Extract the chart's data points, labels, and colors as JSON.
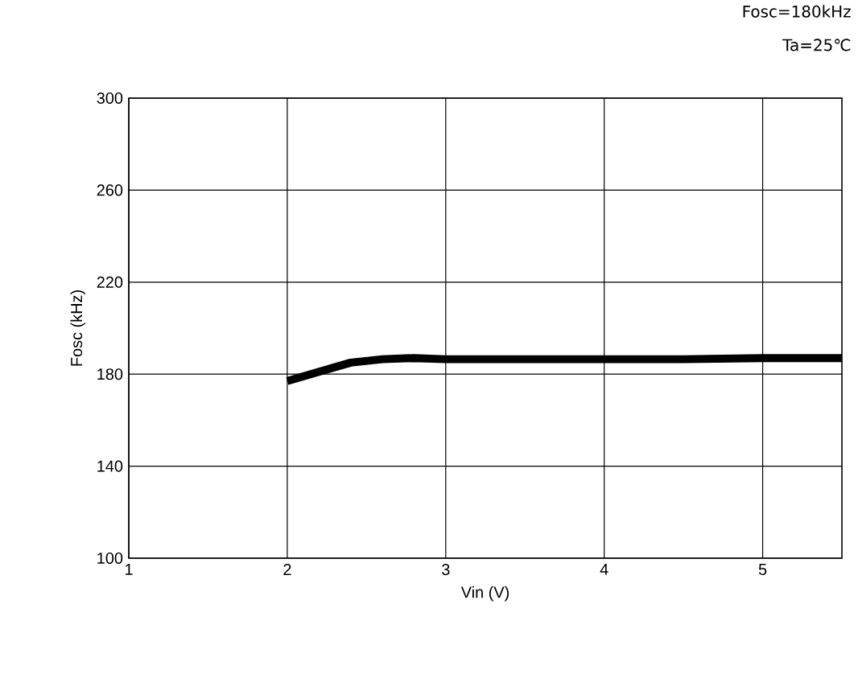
{
  "chart_data": {
    "type": "line",
    "xlabel": "Vin (V)",
    "ylabel": "Fosc (kHz)",
    "annotations": [
      "Fosc=180kHz",
      "Ta=25℃"
    ],
    "series": [
      {
        "color": "#000000",
        "x": [
          2,
          2.2,
          2.4,
          2.6,
          2.8,
          3,
          3.5,
          4,
          4.5,
          5,
          5.5
        ],
        "values": [
          177,
          181,
          185,
          186.5,
          187,
          186.5,
          186.5,
          186.5,
          186.5,
          187,
          187
        ]
      }
    ],
    "xlim": [
      1,
      5.5
    ],
    "xticks": [
      1,
      2,
      3,
      4,
      5
    ],
    "ylim": [
      100,
      300
    ],
    "yticks": [
      100,
      140,
      180,
      220,
      260,
      300
    ],
    "grid": true,
    "marker": "none",
    "line_style": "solid"
  }
}
